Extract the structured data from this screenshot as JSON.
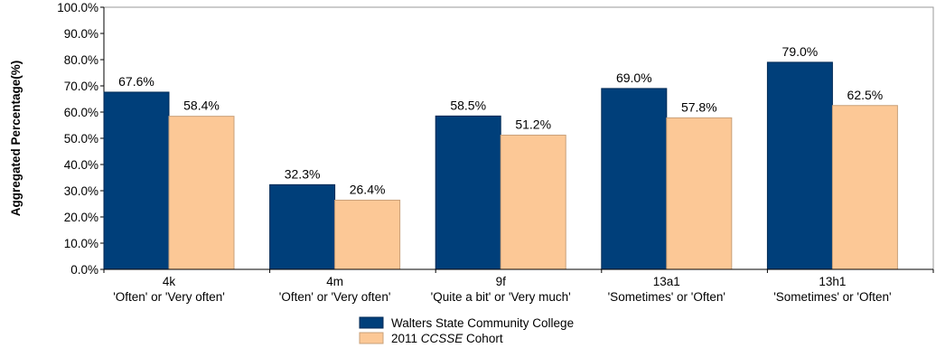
{
  "chart_data": {
    "type": "bar",
    "ylabel": "Aggregated Percentage(%)",
    "ylim": [
      0,
      100
    ],
    "y_ticks": [
      "0.0%",
      "10.0%",
      "20.0%",
      "30.0%",
      "40.0%",
      "50.0%",
      "60.0%",
      "70.0%",
      "80.0%",
      "90.0%",
      "100.0%"
    ],
    "categories": [
      {
        "code": "4k",
        "label": "'Often' or 'Very often'"
      },
      {
        "code": "4m",
        "label": "'Often' or 'Very often'"
      },
      {
        "code": "9f",
        "label": "'Quite a bit' or 'Very much'"
      },
      {
        "code": "13a1",
        "label": "'Sometimes' or 'Often'"
      },
      {
        "code": "13h1",
        "label": "'Sometimes' or 'Often'"
      }
    ],
    "series": [
      {
        "name": "Walters State Community College",
        "color": "#003f7a",
        "values": [
          67.6,
          32.3,
          58.5,
          69.0,
          79.0
        ],
        "labels": [
          "67.6%",
          "32.3%",
          "58.5%",
          "69.0%",
          "79.0%"
        ]
      },
      {
        "name": "2011 CCSSE Cohort",
        "name_parts": [
          "2011 ",
          "CCSSE",
          " Cohort"
        ],
        "color": "#fcc896",
        "values": [
          58.4,
          26.4,
          51.2,
          57.8,
          62.5
        ],
        "labels": [
          "58.4%",
          "26.4%",
          "51.2%",
          "57.8%",
          "62.5%"
        ]
      }
    ],
    "grid": false,
    "legend_position": "bottom-center"
  }
}
